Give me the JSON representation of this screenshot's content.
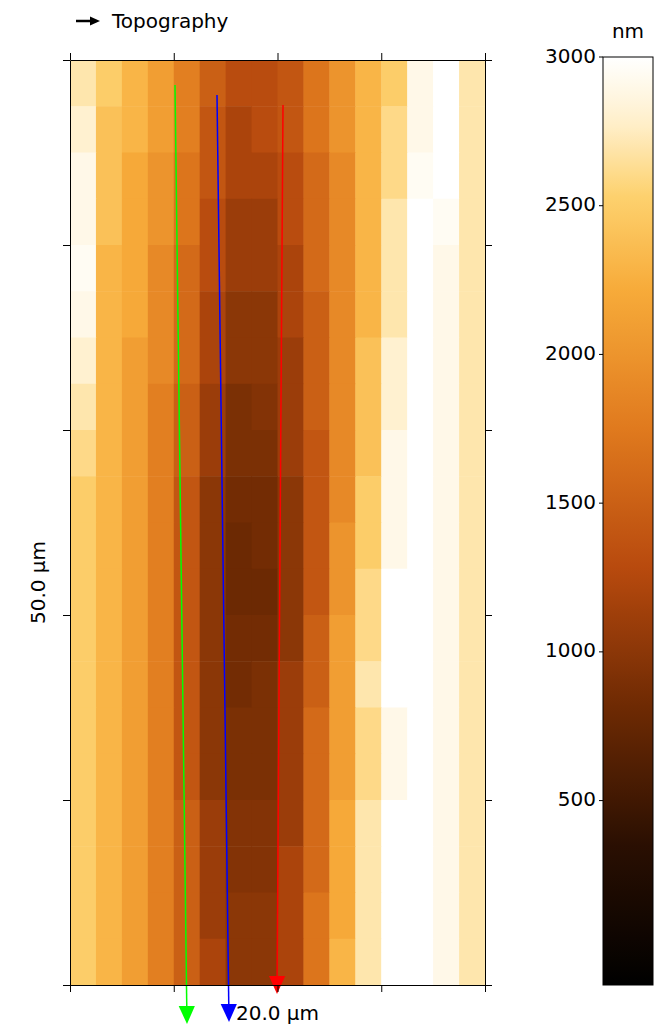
{
  "chart_data": {
    "type": "heatmap",
    "title": "Topography",
    "x_label": "20.0 µm",
    "y_label": "50.0 µm",
    "xlim": [
      0,
      20
    ],
    "ylim": [
      0,
      50
    ],
    "xticks": [
      0,
      5,
      10,
      15,
      20
    ],
    "yticks": [
      0,
      10,
      20,
      30,
      40,
      50
    ],
    "tick_labels": false,
    "cells": [
      [
        2700,
        2500,
        2300,
        2100,
        1800,
        1500,
        1300,
        1300,
        1400,
        1700,
        2000,
        2300,
        2500,
        2900,
        3000,
        2700
      ],
      [
        2800,
        2400,
        2300,
        2100,
        1800,
        1400,
        1200,
        1300,
        1400,
        1700,
        2000,
        2300,
        2600,
        2900,
        3000,
        2700
      ],
      [
        2900,
        2400,
        2200,
        2000,
        1700,
        1400,
        1200,
        1200,
        1300,
        1600,
        1900,
        2300,
        2600,
        2950,
        3000,
        2700
      ],
      [
        2900,
        2400,
        2200,
        2000,
        1700,
        1300,
        1100,
        1100,
        1300,
        1600,
        1900,
        2300,
        2700,
        3000,
        2950,
        2700
      ],
      [
        2950,
        2300,
        2200,
        1900,
        1600,
        1300,
        1100,
        1100,
        1200,
        1600,
        1900,
        2300,
        2700,
        3000,
        2900,
        2700
      ],
      [
        2900,
        2300,
        2200,
        1900,
        1600,
        1200,
        1000,
        1000,
        1200,
        1500,
        1900,
        2300,
        2700,
        3000,
        2900,
        2700
      ],
      [
        2800,
        2300,
        2100,
        1900,
        1600,
        1200,
        1000,
        1000,
        1100,
        1500,
        1900,
        2400,
        2800,
        3000,
        2900,
        2700
      ],
      [
        2700,
        2300,
        2100,
        1800,
        1500,
        1100,
        900,
        950,
        1100,
        1500,
        1900,
        2400,
        2800,
        3000,
        2900,
        2700
      ],
      [
        2600,
        2300,
        2100,
        1800,
        1500,
        1100,
        900,
        900,
        1100,
        1400,
        1900,
        2400,
        2900,
        3000,
        2900,
        2700
      ],
      [
        2500,
        2300,
        2100,
        1800,
        1400,
        1000,
        850,
        850,
        1000,
        1400,
        1900,
        2500,
        2900,
        3000,
        2900,
        2700
      ],
      [
        2500,
        2300,
        2100,
        1800,
        1400,
        1000,
        800,
        850,
        1000,
        1400,
        2000,
        2500,
        2900,
        3000,
        2900,
        2700
      ],
      [
        2500,
        2300,
        2100,
        1800,
        1400,
        1000,
        800,
        800,
        1000,
        1400,
        2000,
        2600,
        3000,
        3000,
        2900,
        2700
      ],
      [
        2500,
        2300,
        2100,
        1800,
        1400,
        1000,
        850,
        850,
        1000,
        1500,
        2100,
        2600,
        3000,
        3000,
        2900,
        2700
      ],
      [
        2500,
        2300,
        2100,
        1800,
        1400,
        1000,
        850,
        900,
        1100,
        1500,
        2100,
        2700,
        3000,
        3000,
        2900,
        2700
      ],
      [
        2500,
        2300,
        2100,
        1800,
        1400,
        1000,
        900,
        900,
        1100,
        1600,
        2100,
        2600,
        2900,
        3000,
        2900,
        2700
      ],
      [
        2500,
        2300,
        2100,
        1800,
        1400,
        1000,
        900,
        900,
        1100,
        1600,
        2100,
        2600,
        2900,
        3000,
        2900,
        2700
      ],
      [
        2500,
        2300,
        2100,
        1800,
        1500,
        1100,
        950,
        950,
        1100,
        1600,
        2200,
        2700,
        3000,
        3000,
        2900,
        2700
      ],
      [
        2500,
        2300,
        2100,
        1800,
        1500,
        1100,
        950,
        950,
        1200,
        1600,
        2200,
        2700,
        3000,
        3000,
        2900,
        2700
      ],
      [
        2500,
        2300,
        2100,
        1800,
        1500,
        1100,
        1000,
        1000,
        1200,
        1700,
        2200,
        2700,
        3000,
        3000,
        2900,
        2700
      ],
      [
        2500,
        2300,
        2100,
        1800,
        1500,
        1200,
        1000,
        1000,
        1200,
        1700,
        2300,
        2700,
        3000,
        3000,
        2900,
        2700
      ]
    ],
    "colorbar": {
      "label": "nm",
      "range": [
        -120,
        3000
      ],
      "ticks": [
        500,
        1000,
        1500,
        2000,
        2500,
        3000
      ]
    }
  }
}
